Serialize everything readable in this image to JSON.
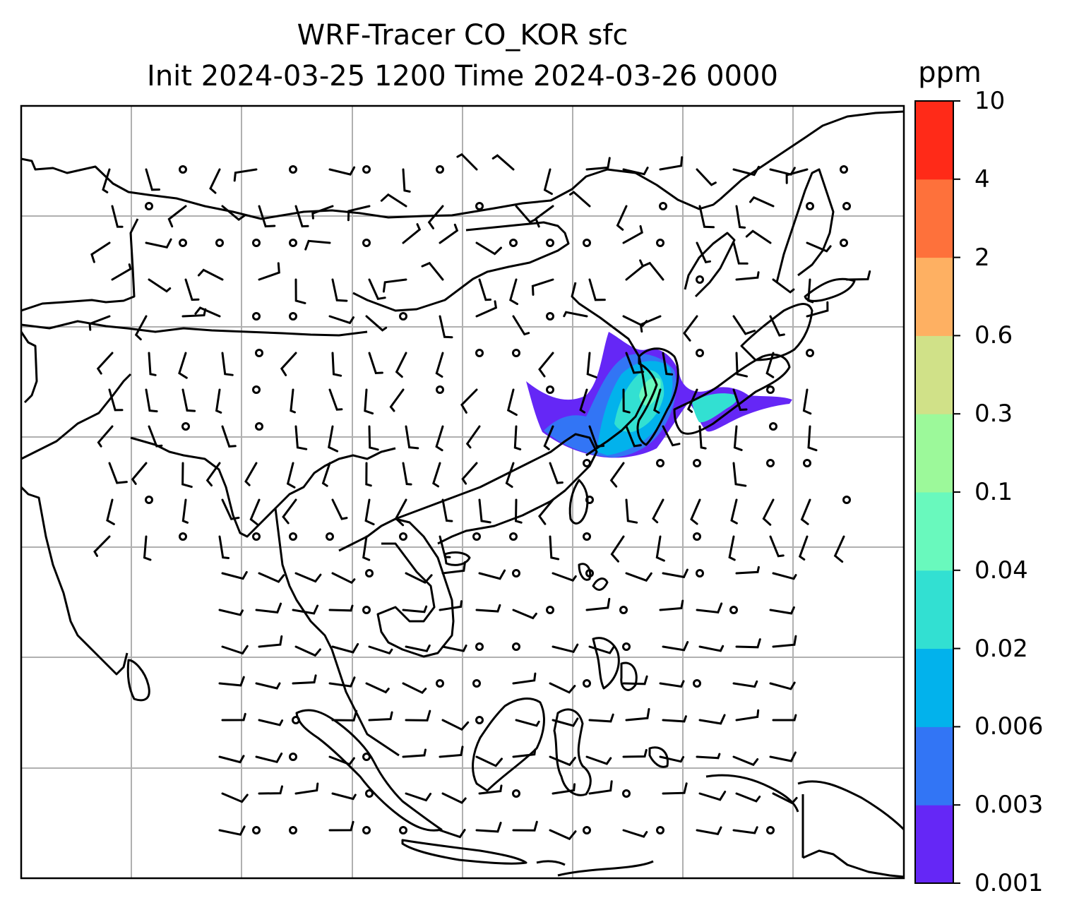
{
  "title": {
    "line1": "WRF-Tracer CO_KOR sfc",
    "line2": "Init 2024-03-25 1200 Time 2024-03-26 0000"
  },
  "map": {
    "projection": "regional map of East and Southeast Asia",
    "gridlines": "on",
    "gridline_color": "#b0b0b0",
    "coastline_color": "#000000",
    "overlay": "wind barbs",
    "plume_region": "Korean Peninsula, Yellow Sea, East China Sea and Japan"
  },
  "colorbar": {
    "unit": "ppm",
    "levels": [
      "0.001",
      "0.003",
      "0.006",
      "0.02",
      "0.04",
      "0.1",
      "0.3",
      "0.6",
      "2",
      "4",
      "10"
    ],
    "colors": [
      "#6527f6",
      "#3275f5",
      "#02b2ec",
      "#32e0d2",
      "#69f9bd",
      "#9cf99a",
      "#d0e188",
      "#feb062",
      "#fe713b",
      "#ff2a18"
    ]
  }
}
